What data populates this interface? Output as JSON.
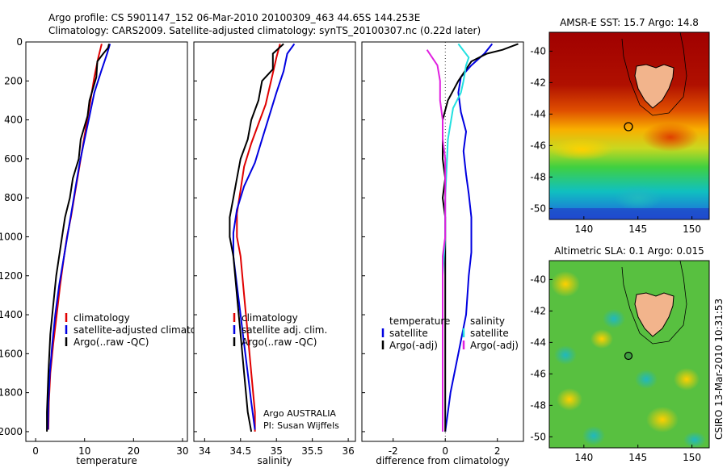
{
  "title": {
    "line1": "Argo profile: CS 5901147_152 06-Mar-2010 20100309_463 44.65S 144.253E",
    "line2": "Climatology: CARS2009. Satellite-adjusted climatology: synTS_20100307.nc (0.22d later)"
  },
  "side_text": "CSIRO 13-Mar-2010 10:31:53",
  "colors": {
    "climatology": "#e00000",
    "satellite": "#0000e0",
    "argo": "#000000",
    "sat_cyan": "#22e0e0",
    "argo_adj": "#e020e0"
  },
  "chart_data": [
    {
      "id": "temperature-panel",
      "type": "line",
      "xlabel": "temperature",
      "ylabel": "",
      "xlim": [
        -2,
        31
      ],
      "ylim": [
        2050,
        0
      ],
      "xticks": [
        0,
        10,
        20,
        30
      ],
      "yticks": [
        0,
        200,
        400,
        600,
        800,
        1000,
        1200,
        1400,
        1600,
        1800,
        2000
      ],
      "legend": [
        "climatology",
        "satellite-adjusted climatolog",
        "Argo(..raw -QC)"
      ],
      "series": [
        {
          "name": "climatology",
          "color": "#e00000",
          "x": [
            13.5,
            12.8,
            12.0,
            11.2,
            10.4,
            9.6,
            8.8,
            8.0,
            7.2,
            6.4,
            5.8,
            5.0,
            4.3,
            3.6,
            3.0,
            2.7,
            2.6
          ],
          "y": [
            10,
            80,
            180,
            300,
            420,
            540,
            660,
            780,
            900,
            1000,
            1100,
            1250,
            1400,
            1550,
            1700,
            1850,
            1990
          ]
        },
        {
          "name": "satellite-adjusted climatolog",
          "color": "#0000e0",
          "x": [
            15.2,
            14.6,
            13.4,
            12.0,
            11.0,
            10.0,
            9.0,
            8.2,
            7.4,
            6.6,
            5.8,
            4.8,
            4.0,
            3.4,
            2.9,
            2.6,
            2.5
          ],
          "y": [
            10,
            60,
            150,
            260,
            380,
            500,
            620,
            740,
            860,
            980,
            1100,
            1250,
            1400,
            1550,
            1700,
            1850,
            1990
          ]
        },
        {
          "name": "Argo(..raw -QC)",
          "color": "#000000",
          "x": [
            15.0,
            14.8,
            13.8,
            12.6,
            12.4,
            11.0,
            10.6,
            9.2,
            8.8,
            7.6,
            7.0,
            6.0,
            5.4,
            4.8,
            4.2,
            3.6,
            3.0,
            2.6,
            2.3,
            2.3
          ],
          "y": [
            10,
            30,
            60,
            100,
            180,
            300,
            380,
            500,
            600,
            700,
            800,
            900,
            1000,
            1100,
            1200,
            1350,
            1500,
            1700,
            1900,
            2000
          ]
        }
      ]
    },
    {
      "id": "salinity-panel",
      "type": "line",
      "xlabel": "salinity",
      "xlim": [
        33.85,
        36.1
      ],
      "ylim": [
        2050,
        0
      ],
      "xticks": [
        34,
        34.5,
        35,
        35.5,
        36
      ],
      "legend": [
        "climatology",
        "satellite adj. clim.",
        "Argo(..raw -QC)"
      ],
      "annotations": [
        "Argo AUSTRALIA",
        "PI: Susan Wijffels"
      ],
      "series": [
        {
          "name": "climatology",
          "color": "#e00000",
          "x": [
            35.05,
            35.0,
            34.95,
            34.9,
            34.85,
            34.75,
            34.65,
            34.55,
            34.5,
            34.45,
            34.45,
            34.5,
            34.55,
            34.6,
            34.65,
            34.7,
            34.7
          ],
          "y": [
            10,
            80,
            160,
            240,
            320,
            420,
            520,
            640,
            760,
            880,
            1000,
            1100,
            1300,
            1500,
            1700,
            1900,
            2000
          ]
        },
        {
          "name": "satellite adj. clim.",
          "color": "#0000e0",
          "x": [
            35.25,
            35.15,
            35.1,
            35.0,
            34.9,
            34.8,
            34.7,
            34.55,
            34.45,
            34.4,
            34.4,
            34.45,
            34.5,
            34.55,
            34.6,
            34.65,
            34.7
          ],
          "y": [
            10,
            60,
            150,
            260,
            380,
            500,
            620,
            740,
            860,
            980,
            1100,
            1250,
            1400,
            1550,
            1700,
            1850,
            1990
          ]
        },
        {
          "name": "Argo(..raw -QC)",
          "color": "#000000",
          "x": [
            35.1,
            34.95,
            34.95,
            34.8,
            34.75,
            34.65,
            34.6,
            34.5,
            34.45,
            34.4,
            34.35,
            34.35,
            34.4,
            34.45,
            34.5,
            34.55,
            34.6,
            34.65
          ],
          "y": [
            10,
            60,
            140,
            200,
            300,
            400,
            500,
            600,
            700,
            800,
            900,
            1000,
            1100,
            1300,
            1500,
            1700,
            1900,
            2000
          ]
        }
      ]
    },
    {
      "id": "difference-panel",
      "type": "line",
      "xlabel": "difference from climatology",
      "xlim": [
        -3.2,
        3.0
      ],
      "ylim": [
        2050,
        0
      ],
      "xticks": [
        -2,
        0,
        2
      ],
      "legend": [
        "temperature",
        "satellite",
        "Argo(-adj)",
        "salinity",
        "satellite",
        "Argo(-adj)"
      ],
      "series": [
        {
          "name": "temperature satellite",
          "color": "#0000e0",
          "x": [
            1.8,
            1.5,
            1.0,
            0.6,
            0.5,
            0.6,
            0.8,
            0.7,
            0.8,
            0.9,
            1.0,
            1.0,
            1.0,
            0.9,
            0.8,
            0.5,
            0.2,
            0.1,
            0.0
          ],
          "y": [
            10,
            60,
            120,
            180,
            260,
            360,
            460,
            560,
            680,
            780,
            900,
            1000,
            1080,
            1200,
            1400,
            1600,
            1800,
            1900,
            2000
          ]
        },
        {
          "name": "temperature Argo(-adj)",
          "color": "#000000",
          "x": [
            2.8,
            2.2,
            1.6,
            1.0,
            0.5,
            0.1,
            -0.1,
            -0.1,
            -0.1,
            0.0,
            -0.1,
            0.0,
            0.0,
            0.0,
            0.0,
            0.0
          ],
          "y": [
            10,
            40,
            60,
            100,
            200,
            300,
            400,
            500,
            600,
            700,
            800,
            900,
            1000,
            1200,
            1600,
            2000
          ]
        },
        {
          "name": "salinity satellite",
          "color": "#22e0e0",
          "x": [
            0.5,
            0.9,
            0.8,
            0.7,
            0.6,
            0.3,
            0.1,
            0.0,
            0.0,
            -0.1,
            -0.1,
            -0.1,
            -0.1,
            -0.1,
            -0.1
          ],
          "y": [
            10,
            80,
            120,
            200,
            260,
            340,
            500,
            800,
            1000,
            1200,
            1400,
            1600,
            1800,
            1900,
            2000
          ]
        },
        {
          "name": "salinity Argo(-adj)",
          "color": "#e020e0",
          "x": [
            -0.7,
            -0.3,
            -0.2,
            -0.2,
            -0.1,
            -0.1,
            0.0,
            0.0,
            0.0,
            -0.1,
            -0.1,
            -0.1,
            -0.1,
            -0.1
          ],
          "y": [
            40,
            120,
            200,
            300,
            400,
            500,
            600,
            800,
            1000,
            1100,
            1200,
            1500,
            1800,
            2000
          ]
        }
      ]
    },
    {
      "id": "sst-map",
      "type": "heatmap",
      "title": "AMSR-E SST: 15.7 Argo: 14.8",
      "xticks": [
        140,
        145,
        150
      ],
      "yticks": [
        -40,
        -42,
        -44,
        -46,
        -48,
        -50
      ],
      "xlim": [
        136.8,
        151.6
      ],
      "ylim": [
        -50.7,
        -38.8
      ],
      "marker": {
        "lon": 144.25,
        "lat": -44.65
      }
    },
    {
      "id": "sla-map",
      "type": "heatmap",
      "title": "Altimetric SLA: 0.1 Argo: 0.015",
      "xticks": [
        140,
        145,
        150
      ],
      "yticks": [
        -40,
        -42,
        -44,
        -46,
        -48,
        -50
      ],
      "xlim": [
        136.8,
        151.6
      ],
      "ylim": [
        -50.7,
        -38.8
      ],
      "marker": {
        "lon": 144.25,
        "lat": -44.65
      }
    }
  ]
}
